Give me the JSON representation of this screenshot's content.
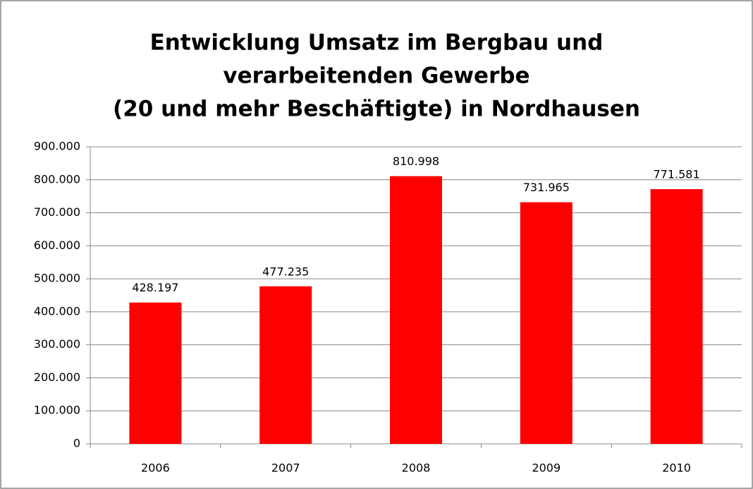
{
  "chart_data": {
    "type": "bar",
    "title": [
      "Entwicklung Umsatz im Bergbau und",
      "verarbeitenden Gewerbe",
      "(20 und mehr Beschäftigte) in Nordhausen"
    ],
    "categories": [
      "2006",
      "2007",
      "2008",
      "2009",
      "2010"
    ],
    "values": [
      428197,
      477235,
      810998,
      731965,
      771581
    ],
    "value_labels": [
      "428.197",
      "477.235",
      "810.998",
      "731.965",
      "771.581"
    ],
    "color": "#ff0000",
    "ylim": [
      0,
      900000
    ],
    "yticks": [
      0,
      {
        "value": 100000,
        "label": "100.000"
      },
      {
        "value": 200000,
        "label": "200.000"
      },
      {
        "value": 300000,
        "label": "300.000"
      },
      {
        "value": 400000,
        "label": "400.000"
      },
      {
        "value": 500000,
        "label": "500.000"
      },
      {
        "value": 600000,
        "label": "600.000"
      },
      {
        "value": 700000,
        "label": "700.000"
      },
      {
        "value": 800000,
        "label": "800.000"
      },
      {
        "value": 900000,
        "label": "900.000"
      }
    ],
    "grid": true
  }
}
